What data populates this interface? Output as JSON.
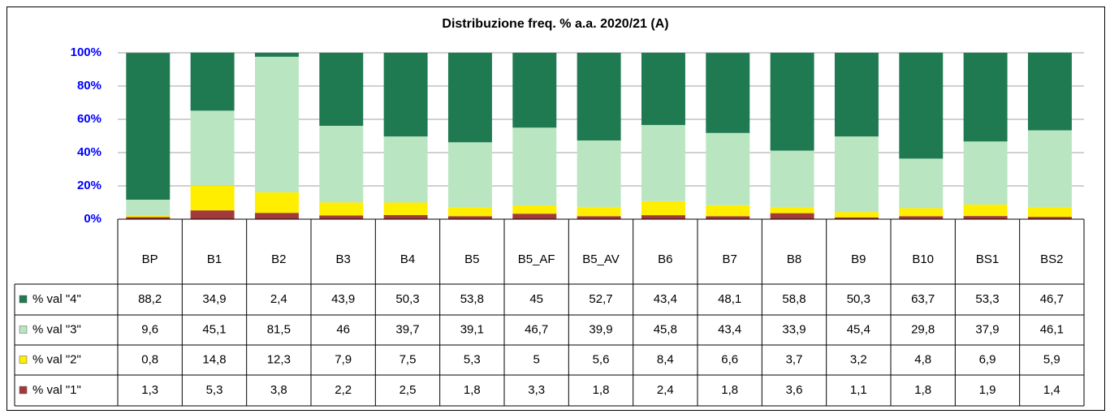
{
  "chart_data": {
    "type": "bar",
    "stacked": true,
    "title": "Distribuzione freq. % a.a. 2020/21 (A)",
    "categories": [
      "BP",
      "B1",
      "B2",
      "B3",
      "B4",
      "B5",
      "B5_AF",
      "B5_AV",
      "B6",
      "B7",
      "B8",
      "B9",
      "B10",
      "BS1",
      "BS2"
    ],
    "series": [
      {
        "name": "% val \"4\"",
        "color": "#1f7a52",
        "values": [
          88.2,
          34.9,
          2.4,
          43.9,
          50.3,
          53.8,
          45,
          52.7,
          43.4,
          48.1,
          58.8,
          50.3,
          63.7,
          53.3,
          46.7
        ],
        "value_labels": [
          "88,2",
          "34,9",
          "2,4",
          "43,9",
          "50,3",
          "53,8",
          "45",
          "52,7",
          "43,4",
          "48,1",
          "58,8",
          "50,3",
          "63,7",
          "53,3",
          "46,7"
        ]
      },
      {
        "name": "% val \"3\"",
        "color": "#b9e6c1",
        "values": [
          9.6,
          45.1,
          81.5,
          46,
          39.7,
          39.1,
          46.7,
          39.9,
          45.8,
          43.4,
          33.9,
          45.4,
          29.8,
          37.9,
          46.1
        ],
        "value_labels": [
          "9,6",
          "45,1",
          "81,5",
          "46",
          "39,7",
          "39,1",
          "46,7",
          "39,9",
          "45,8",
          "43,4",
          "33,9",
          "45,4",
          "29,8",
          "37,9",
          "46,1"
        ]
      },
      {
        "name": "% val \"2\"",
        "color": "#ffee00",
        "values": [
          0.8,
          14.8,
          12.3,
          7.9,
          7.5,
          5.3,
          5,
          5.6,
          8.4,
          6.6,
          3.7,
          3.2,
          4.8,
          6.9,
          5.9
        ],
        "value_labels": [
          "0,8",
          "14,8",
          "12,3",
          "7,9",
          "7,5",
          "5,3",
          "5",
          "5,6",
          "8,4",
          "6,6",
          "3,7",
          "3,2",
          "4,8",
          "6,9",
          "5,9"
        ]
      },
      {
        "name": "% val \"1\"",
        "color": "#a33a3a",
        "values": [
          1.3,
          5.3,
          3.8,
          2.2,
          2.5,
          1.8,
          3.3,
          1.8,
          2.4,
          1.8,
          3.6,
          1.1,
          1.8,
          1.9,
          1.4
        ],
        "value_labels": [
          "1,3",
          "5,3",
          "3,8",
          "2,2",
          "2,5",
          "1,8",
          "3,3",
          "1,8",
          "2,4",
          "1,8",
          "3,6",
          "1,1",
          "1,8",
          "1,9",
          "1,4"
        ]
      }
    ],
    "ylim": [
      0,
      100
    ],
    "yticks": [
      {
        "value": 0,
        "label": "0%"
      },
      {
        "value": 20,
        "label": "20%"
      },
      {
        "value": 40,
        "label": "40%"
      },
      {
        "value": 60,
        "label": "60%"
      },
      {
        "value": 80,
        "label": "80%"
      },
      {
        "value": 100,
        "label": "100%"
      }
    ],
    "grid": true
  }
}
